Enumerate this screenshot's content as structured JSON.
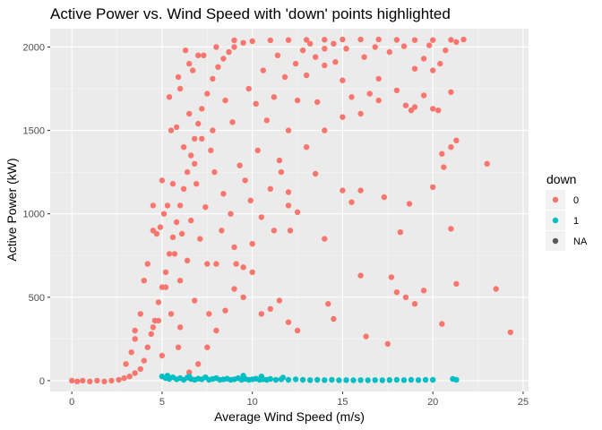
{
  "chart_data": {
    "type": "scatter",
    "title": "Active Power vs. Wind Speed with 'down' points highlighted",
    "xlabel": "Average Wind Speed (m/s)",
    "ylabel": "Active Power (kW)",
    "xlim": [
      -1.2,
      25.3
    ],
    "ylim": [
      -65,
      2110
    ],
    "x_ticks": [
      0,
      5,
      10,
      15,
      20,
      25
    ],
    "y_ticks": [
      0,
      500,
      1000,
      1500,
      2000
    ],
    "grid": true,
    "legend": {
      "title": "down",
      "placement": "right",
      "entries": [
        {
          "label": "0",
          "color": "#F8766D"
        },
        {
          "label": "1",
          "color": "#00BFC4"
        },
        {
          "label": "NA",
          "color": "#595959"
        }
      ]
    },
    "series": [
      {
        "name": "0",
        "color": "#F8766D",
        "points": [
          [
            0.0,
            0
          ],
          [
            0.3,
            -5
          ],
          [
            0.6,
            0
          ],
          [
            1.0,
            -5
          ],
          [
            1.4,
            0
          ],
          [
            1.8,
            -5
          ],
          [
            2.2,
            0
          ],
          [
            2.6,
            5
          ],
          [
            2.9,
            15
          ],
          [
            3.2,
            25
          ],
          [
            3.5,
            45
          ],
          [
            3.8,
            70
          ],
          [
            4.0,
            120
          ],
          [
            4.2,
            200
          ],
          [
            4.4,
            280
          ],
          [
            4.6,
            360
          ],
          [
            4.8,
            470
          ],
          [
            5.0,
            560
          ],
          [
            5.2,
            650
          ],
          [
            5.4,
            760
          ],
          [
            5.6,
            860
          ],
          [
            5.8,
            950
          ],
          [
            6.0,
            1050
          ],
          [
            6.2,
            1150
          ],
          [
            6.4,
            1250
          ],
          [
            6.6,
            1350
          ],
          [
            6.8,
            1450
          ],
          [
            7.0,
            1540
          ],
          [
            7.2,
            1630
          ],
          [
            7.5,
            1720
          ],
          [
            7.8,
            1810
          ],
          [
            8.1,
            1880
          ],
          [
            8.4,
            1930
          ],
          [
            8.7,
            1970
          ],
          [
            9.0,
            2000
          ],
          [
            9.5,
            2025
          ],
          [
            10.0,
            2035
          ],
          [
            11.0,
            2040
          ],
          [
            12.0,
            2042
          ],
          [
            13.0,
            2043
          ],
          [
            14.0,
            2044
          ],
          [
            15.0,
            2045
          ],
          [
            16.0,
            2045
          ],
          [
            17.0,
            2045
          ],
          [
            18.0,
            2043
          ],
          [
            19.0,
            2042
          ],
          [
            20.0,
            2042
          ],
          [
            21.0,
            2043
          ],
          [
            21.7,
            2045
          ],
          [
            6.5,
            50
          ],
          [
            7.0,
            100
          ],
          [
            7.5,
            200
          ],
          [
            8.0,
            300
          ],
          [
            8.5,
            420
          ],
          [
            9.0,
            550
          ],
          [
            9.5,
            680
          ],
          [
            10.0,
            820
          ],
          [
            10.5,
            980
          ],
          [
            11.0,
            1150
          ],
          [
            11.5,
            1320
          ],
          [
            12.0,
            1500
          ],
          [
            12.5,
            1680
          ],
          [
            13.0,
            1830
          ],
          [
            13.5,
            1940
          ],
          [
            14.0,
            1990
          ],
          [
            14.5,
            2020
          ],
          [
            3.0,
            100
          ],
          [
            3.5,
            300
          ],
          [
            4.0,
            600
          ],
          [
            4.5,
            900
          ],
          [
            5.0,
            1200
          ],
          [
            5.5,
            1500
          ],
          [
            6.0,
            1750
          ],
          [
            6.5,
            1900
          ],
          [
            7.0,
            1950
          ],
          [
            8.0,
            2000
          ],
          [
            9.0,
            2040
          ],
          [
            6.3,
            1980
          ],
          [
            6.7,
            1860
          ],
          [
            7.3,
            1950
          ],
          [
            6.5,
            1600
          ],
          [
            6.2,
            1400
          ],
          [
            6.8,
            1300
          ],
          [
            5.6,
            1180
          ],
          [
            5.3,
            1050
          ],
          [
            5.1,
            1000
          ],
          [
            4.9,
            920
          ],
          [
            5.8,
            1520
          ],
          [
            7.2,
            1450
          ],
          [
            6.0,
            600
          ],
          [
            5.5,
            400
          ],
          [
            5.9,
            200
          ],
          [
            7.6,
            400
          ],
          [
            8.0,
            700
          ],
          [
            9.0,
            800
          ],
          [
            10.0,
            650
          ],
          [
            9.5,
            500
          ],
          [
            10.5,
            400
          ],
          [
            11.0,
            430
          ],
          [
            11.5,
            480
          ],
          [
            12.0,
            350
          ],
          [
            12.5,
            300
          ],
          [
            11.2,
            900
          ],
          [
            12.0,
            1050
          ],
          [
            13.5,
            1240
          ],
          [
            13.0,
            1400
          ],
          [
            14.0,
            1500
          ],
          [
            15.0,
            1580
          ],
          [
            15.5,
            1700
          ],
          [
            16.0,
            1600
          ],
          [
            16.5,
            1720
          ],
          [
            17.0,
            1680
          ],
          [
            18.0,
            1740
          ],
          [
            18.5,
            1650
          ],
          [
            19.0,
            1640
          ],
          [
            20.0,
            1630
          ],
          [
            20.3,
            1620
          ],
          [
            19.5,
            1710
          ],
          [
            20.5,
            1360
          ],
          [
            20.6,
            1280
          ],
          [
            21.0,
            1400
          ],
          [
            21.3,
            1440
          ],
          [
            23.0,
            1300
          ],
          [
            23.5,
            550
          ],
          [
            24.3,
            290
          ],
          [
            20.5,
            340
          ],
          [
            19.5,
            540
          ],
          [
            19.0,
            460
          ],
          [
            18.5,
            500
          ],
          [
            18.2,
            890
          ],
          [
            17.7,
            620
          ],
          [
            17.3,
            1100
          ],
          [
            16.0,
            630
          ],
          [
            16.3,
            265
          ],
          [
            14.0,
            850
          ],
          [
            14.2,
            460
          ],
          [
            14.5,
            370
          ],
          [
            12.0,
            1130
          ],
          [
            12.5,
            1010
          ],
          [
            12.1,
            900
          ],
          [
            15.5,
            1070
          ],
          [
            15.0,
            1140
          ],
          [
            16.0,
            1140
          ],
          [
            20.0,
            1160
          ],
          [
            18.7,
            1060
          ],
          [
            21.0,
            910
          ],
          [
            21.3,
            580
          ],
          [
            17.5,
            220
          ],
          [
            18.0,
            530
          ],
          [
            20.7,
            1980
          ],
          [
            20.4,
            1900
          ],
          [
            19.5,
            1930
          ],
          [
            20.0,
            1860
          ],
          [
            19.0,
            1870
          ],
          [
            18.8,
            1620
          ],
          [
            21.0,
            1730
          ],
          [
            15.0,
            1800
          ],
          [
            17.0,
            1810
          ],
          [
            14.0,
            1890
          ],
          [
            10.2,
            1660
          ],
          [
            9.3,
            1290
          ],
          [
            8.5,
            1680
          ],
          [
            5.4,
            1700
          ],
          [
            5.9,
            1820
          ],
          [
            7.8,
            1500
          ],
          [
            4.5,
            1050
          ],
          [
            4.7,
            880
          ],
          [
            4.2,
            700
          ],
          [
            3.8,
            400
          ],
          [
            3.5,
            250
          ],
          [
            3.3,
            170
          ],
          [
            5.0,
            150
          ],
          [
            4.5,
            320
          ],
          [
            6.0,
            320
          ],
          [
            6.8,
            480
          ],
          [
            7.5,
            700
          ],
          [
            8.3,
            900
          ],
          [
            9.1,
            700
          ],
          [
            8.8,
            1000
          ],
          [
            9.6,
            1200
          ],
          [
            10.3,
            1380
          ],
          [
            11.2,
            1700
          ],
          [
            11.8,
            1820
          ],
          [
            12.4,
            1900
          ],
          [
            13.2,
            2020
          ],
          [
            13.6,
            1670
          ],
          [
            14.6,
            1910
          ],
          [
            16.2,
            1940
          ],
          [
            17.6,
            1970
          ],
          [
            6.9,
            1180
          ],
          [
            6.1,
            880
          ],
          [
            7.9,
            1250
          ],
          [
            10.8,
            1560
          ],
          [
            11.6,
            1250
          ],
          [
            9.9,
            1080
          ],
          [
            8.4,
            1120
          ],
          [
            7.4,
            1040
          ],
          [
            6.6,
            960
          ],
          [
            5.7,
            760
          ],
          [
            5.2,
            560
          ],
          [
            4.8,
            360
          ],
          [
            6.4,
            720
          ],
          [
            7.1,
            850
          ],
          [
            7.7,
            1380
          ],
          [
            8.9,
            1550
          ],
          [
            9.8,
            1750
          ],
          [
            10.6,
            1860
          ],
          [
            11.4,
            1950
          ],
          [
            12.8,
            1980
          ],
          [
            15.2,
            1990
          ],
          [
            16.8,
            2000
          ],
          [
            18.4,
            2005
          ],
          [
            19.8,
            2010
          ],
          [
            21.3,
            2030
          ]
        ]
      },
      {
        "name": "1",
        "color": "#00BFC4",
        "points": [
          [
            5.0,
            25
          ],
          [
            5.2,
            15
          ],
          [
            5.4,
            10
          ],
          [
            5.6,
            20
          ],
          [
            5.8,
            8
          ],
          [
            6.0,
            15
          ],
          [
            6.2,
            5
          ],
          [
            6.4,
            18
          ],
          [
            6.6,
            10
          ],
          [
            6.8,
            5
          ],
          [
            7.0,
            12
          ],
          [
            7.2,
            8
          ],
          [
            7.4,
            20
          ],
          [
            7.6,
            5
          ],
          [
            7.8,
            10
          ],
          [
            8.0,
            15
          ],
          [
            8.2,
            5
          ],
          [
            8.4,
            8
          ],
          [
            8.6,
            12
          ],
          [
            8.8,
            5
          ],
          [
            9.0,
            8
          ],
          [
            9.2,
            15
          ],
          [
            9.4,
            5
          ],
          [
            9.6,
            10
          ],
          [
            9.8,
            5
          ],
          [
            10.0,
            8
          ],
          [
            10.2,
            12
          ],
          [
            10.4,
            5
          ],
          [
            10.6,
            8
          ],
          [
            10.8,
            5
          ],
          [
            11.0,
            10
          ],
          [
            11.3,
            5
          ],
          [
            11.6,
            8
          ],
          [
            12.0,
            5
          ],
          [
            12.4,
            8
          ],
          [
            12.8,
            5
          ],
          [
            13.2,
            3
          ],
          [
            13.6,
            5
          ],
          [
            14.0,
            3
          ],
          [
            14.4,
            5
          ],
          [
            14.8,
            2
          ],
          [
            15.2,
            3
          ],
          [
            15.6,
            2
          ],
          [
            16.0,
            3
          ],
          [
            16.4,
            2
          ],
          [
            16.8,
            3
          ],
          [
            17.2,
            2
          ],
          [
            17.6,
            4
          ],
          [
            18.0,
            5
          ],
          [
            18.4,
            3
          ],
          [
            18.8,
            5
          ],
          [
            19.2,
            3
          ],
          [
            19.6,
            5
          ],
          [
            20.0,
            5
          ],
          [
            21.1,
            10
          ],
          [
            21.3,
            5
          ],
          [
            6.5,
            25
          ],
          [
            9.5,
            30
          ],
          [
            10.5,
            25
          ],
          [
            11.7,
            18
          ],
          [
            5.3,
            30
          ]
        ]
      }
    ]
  }
}
